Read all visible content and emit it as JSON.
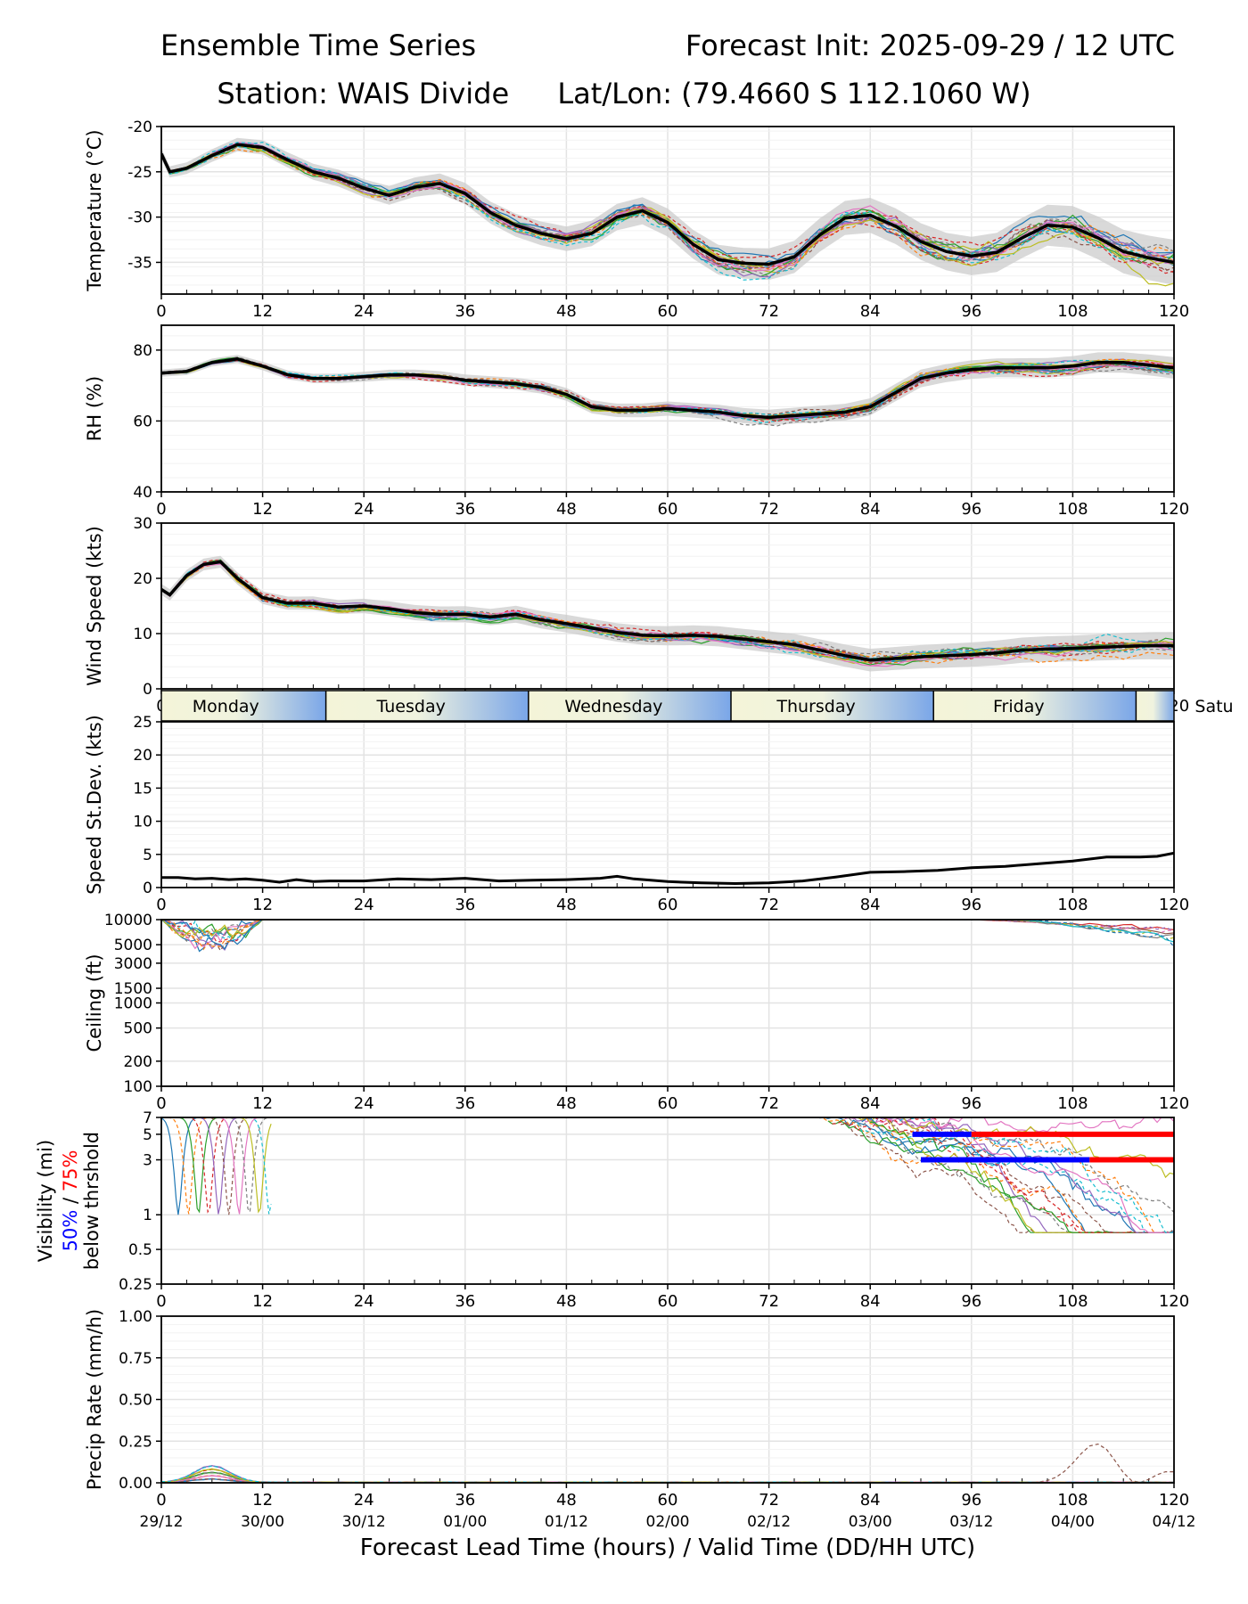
{
  "header": {
    "title_left": "Ensemble Time Series",
    "title_right": "Forecast Init: 2025-09-29 / 12 UTC",
    "station": "Station: WAIS Divide",
    "latlon": "Lat/Lon: (79.4660 S 112.1060 W)"
  },
  "colors": {
    "mean": "#000000",
    "spread": "#cccccc",
    "vis50": "#0000ff",
    "vis75": "#ff0000",
    "members": [
      "#1f77b4",
      "#ff7f0e",
      "#2ca02c",
      "#d62728",
      "#9467bd",
      "#8c564b",
      "#e377c2",
      "#7f7f7f",
      "#bcbd22",
      "#17becf"
    ]
  },
  "day_band": {
    "days": [
      "Monday",
      "Tuesday",
      "Wednesday",
      "Thursday",
      "Friday",
      "Satu"
    ],
    "boundaries_hours": [
      19.5,
      43.5,
      67.5,
      91.5,
      115.5
    ]
  },
  "chart_data": [
    {
      "id": "temperature",
      "type": "line",
      "ylabel": "Temperature (°C)",
      "ylim": [
        -38.5,
        -20
      ],
      "yticks": [
        -35,
        -30,
        -25,
        -20
      ],
      "xlim": [
        0,
        120
      ],
      "xticks": [
        0,
        12,
        24,
        36,
        48,
        60,
        72,
        84,
        96,
        108,
        120
      ],
      "mean": {
        "x": [
          0,
          1,
          3,
          6,
          9,
          12,
          15,
          18,
          21,
          24,
          27,
          30,
          33,
          36,
          39,
          42,
          45,
          48,
          51,
          54,
          57,
          60,
          63,
          66,
          69,
          72,
          75,
          78,
          81,
          84,
          87,
          90,
          93,
          96,
          99,
          102,
          105,
          108,
          111,
          114,
          117,
          120
        ],
        "y": [
          -23,
          -25,
          -24.6,
          -23.2,
          -22,
          -22.3,
          -23.7,
          -25,
          -25.7,
          -26.8,
          -27.6,
          -26.7,
          -26.3,
          -27.4,
          -29.5,
          -30.9,
          -31.8,
          -32.4,
          -31.8,
          -30,
          -29.3,
          -30.6,
          -33,
          -34.7,
          -35.1,
          -35.2,
          -34.4,
          -32,
          -30.1,
          -29.8,
          -31,
          -32.7,
          -33.8,
          -34.3,
          -33.9,
          -32.3,
          -30.9,
          -31.1,
          -32.3,
          -33.8,
          -34.5,
          -35
        ]
      },
      "spread": {
        "half_width_start": 0.6,
        "half_width_end": 2.5
      },
      "members_count": 20
    },
    {
      "id": "rh",
      "type": "line",
      "ylabel": "RH (%)",
      "ylim": [
        40,
        87
      ],
      "yticks": [
        40,
        60,
        80
      ],
      "xlim": [
        0,
        120
      ],
      "xticks": [
        0,
        12,
        24,
        36,
        48,
        60,
        72,
        84,
        96,
        108,
        120
      ],
      "mean": {
        "x": [
          0,
          3,
          6,
          9,
          12,
          15,
          18,
          21,
          24,
          27,
          30,
          33,
          36,
          39,
          42,
          45,
          48,
          51,
          54,
          57,
          60,
          63,
          66,
          69,
          72,
          75,
          78,
          81,
          84,
          87,
          90,
          93,
          96,
          99,
          102,
          105,
          108,
          111,
          114,
          117,
          120
        ],
        "y": [
          73.5,
          74,
          76.5,
          77.5,
          75.5,
          73,
          72,
          72,
          72.5,
          73,
          73,
          72.5,
          71.5,
          71,
          70.5,
          69.5,
          67.5,
          64,
          63,
          63,
          63.5,
          63,
          62.5,
          61.5,
          61,
          61.5,
          62,
          62.5,
          64,
          68,
          72,
          73.5,
          74.5,
          75,
          75,
          75,
          75.5,
          76.5,
          76.5,
          75.8,
          75
        ]
      },
      "spread": {
        "half_width_start": 1.0,
        "half_width_end": 3.0
      },
      "members_count": 20
    },
    {
      "id": "windspeed",
      "type": "line",
      "ylabel": "Wind Speed (kts)",
      "ylim": [
        0,
        30
      ],
      "yticks": [
        0,
        10,
        20,
        30
      ],
      "xlim": [
        0,
        120
      ],
      "xticks": [
        0,
        12,
        24,
        36,
        48,
        60,
        72,
        84,
        96,
        108,
        120
      ],
      "mean": {
        "x": [
          0,
          1,
          3,
          5,
          7,
          9,
          12,
          15,
          18,
          21,
          24,
          27,
          30,
          33,
          36,
          39,
          42,
          45,
          48,
          51,
          54,
          57,
          60,
          63,
          66,
          69,
          72,
          75,
          78,
          81,
          84,
          87,
          90,
          93,
          96,
          99,
          102,
          105,
          108,
          111,
          114,
          117,
          120
        ],
        "y": [
          18,
          17,
          20.5,
          22.5,
          23,
          20,
          16.5,
          15.5,
          15.5,
          14.8,
          15,
          14.5,
          13.8,
          13.5,
          13.5,
          13,
          13.5,
          12.5,
          11.8,
          11,
          10.2,
          9.7,
          9.6,
          9.7,
          9.5,
          9,
          8.5,
          8,
          7,
          6,
          5.2,
          5.5,
          5.8,
          6,
          6.2,
          6.5,
          7,
          7.2,
          7.3,
          7.5,
          7.7,
          7.8,
          7.8
        ]
      },
      "spread": {
        "half_width_start": 1.0,
        "half_width_end": 2.5
      },
      "members_count": 20
    },
    {
      "id": "speed_stdev",
      "type": "line",
      "ylabel": "Speed St.Dev. (kts)",
      "ylim": [
        0,
        25
      ],
      "yticks": [
        0,
        5,
        10,
        15,
        20,
        25
      ],
      "xlim": [
        0,
        120
      ],
      "xticks": [
        0,
        12,
        24,
        36,
        48,
        60,
        72,
        84,
        96,
        108,
        120
      ],
      "mean": {
        "x": [
          0,
          2,
          4,
          6,
          8,
          10,
          12,
          14,
          16,
          18,
          20,
          24,
          28,
          32,
          36,
          40,
          44,
          48,
          52,
          54,
          56,
          60,
          64,
          68,
          72,
          76,
          80,
          84,
          88,
          92,
          96,
          100,
          104,
          108,
          112,
          116,
          118,
          120
        ],
        "y": [
          1.5,
          1.5,
          1.3,
          1.4,
          1.2,
          1.3,
          1.1,
          0.8,
          1.2,
          0.9,
          1.0,
          1.0,
          1.3,
          1.2,
          1.4,
          1.0,
          1.1,
          1.2,
          1.4,
          1.7,
          1.3,
          0.9,
          0.7,
          0.6,
          0.7,
          1.0,
          1.6,
          2.3,
          2.4,
          2.6,
          3.0,
          3.2,
          3.6,
          4.0,
          4.6,
          4.6,
          4.7,
          5.2
        ]
      }
    },
    {
      "id": "ceiling",
      "type": "line",
      "ylabel": "Ceiling (ft)",
      "yscale": "log",
      "ylim": [
        100,
        10000
      ],
      "ytick_labels": [
        "100",
        "200",
        "500",
        "1000",
        "1500",
        "3000",
        "5000",
        "10000"
      ],
      "xlim": [
        0,
        120
      ],
      "xticks": [
        0,
        12,
        24,
        36,
        48,
        60,
        72,
        84,
        96,
        108,
        120
      ],
      "members_count": 12
    },
    {
      "id": "visibility",
      "type": "line",
      "ylabel": "Visibility (mi)",
      "yscale": "log",
      "ylabel_lines": [
        "50%",
        "75%",
        "below thrshold"
      ],
      "ylim": [
        0.25,
        7
      ],
      "ytick_labels": [
        "0.25",
        "0.5",
        "1",
        "3",
        "5",
        "7"
      ],
      "xlim": [
        0,
        120
      ],
      "xticks": [
        0,
        12,
        24,
        36,
        48,
        60,
        72,
        84,
        96,
        108,
        120
      ],
      "threshold_bars": [
        {
          "level": 5,
          "blue_range": [
            89,
            96
          ],
          "red_range": [
            96,
            120
          ]
        },
        {
          "level": 3,
          "blue_range": [
            90,
            110
          ],
          "red_range": [
            110,
            120
          ]
        }
      ],
      "members_count": 20
    },
    {
      "id": "precip",
      "type": "line",
      "ylabel": "Precip Rate (mm/h)",
      "ylim": [
        0,
        1.0
      ],
      "ytick_labels": [
        "0.00",
        "0.25",
        "0.50",
        "0.75",
        "1.00"
      ],
      "xlim": [
        0,
        120
      ],
      "xticks": [
        0,
        12,
        24,
        36,
        48,
        60,
        72,
        84,
        96,
        108,
        120
      ],
      "xlabel": "Forecast Lead Time (hours) / Valid Time (DD/HH UTC)",
      "valid_time_labels": [
        "29/12",
        "30/00",
        "30/12",
        "01/00",
        "01/12",
        "02/00",
        "02/12",
        "03/00",
        "03/12",
        "04/00",
        "04/12"
      ],
      "members_count": 20
    }
  ]
}
